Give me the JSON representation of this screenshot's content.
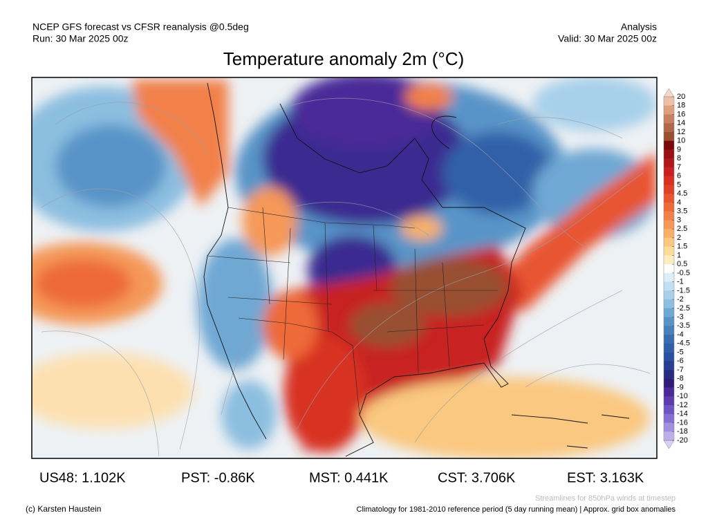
{
  "header": {
    "left_line1": "NCEP GFS forecast vs CFSR reanalysis @0.5deg",
    "left_line2": "Run: 30 Mar 2025 00z",
    "right_line1": "Analysis",
    "right_line2": "Valid: 30 Mar 2025 00z"
  },
  "title": "Temperature anomaly 2m (°C)",
  "stats": [
    "US48: 1.102K",
    "PST: -0.86K",
    "MST: 0.441K",
    "CST: 3.706K",
    "EST: 3.163K"
  ],
  "colorbar": {
    "ticks": [
      20,
      18,
      16,
      14,
      12,
      10,
      9,
      8,
      7,
      6,
      5,
      4.5,
      4,
      3.5,
      3,
      2.5,
      2,
      1.5,
      1,
      0.5,
      -0.5,
      -1,
      -1.5,
      -2,
      -2.5,
      -3,
      -3.5,
      -4,
      -4.5,
      -5,
      -6,
      -7,
      -8,
      -9,
      -10,
      -12,
      -14,
      -16,
      -18,
      -20
    ],
    "colors": [
      "#f7d8c8",
      "#efc0a8",
      "#e0a080",
      "#c88060",
      "#b06848",
      "#985030",
      "#7a0a0a",
      "#9a0f10",
      "#b01818",
      "#c82020",
      "#d83020",
      "#e04028",
      "#e85530",
      "#ee6a38",
      "#f28048",
      "#f59858",
      "#f8b068",
      "#fac880",
      "#fcdc98",
      "#fdedc0",
      "#ffffff",
      "#dceef8",
      "#c0e0f2",
      "#a8d0ea",
      "#8cbee0",
      "#70a8d4",
      "#5894c8",
      "#4880bc",
      "#3a6cb0",
      "#3060a8",
      "#2a50a0",
      "#283e90",
      "#282c80",
      "#301c78",
      "#4a2a98",
      "#5c3cb0",
      "#7054c4",
      "#8670d4",
      "#a090e0",
      "#bcb0ec",
      "#d8d0f6"
    ]
  },
  "footer": {
    "streamlines_note": "Streamlines for 850hPa winds at timestep",
    "copyright": "(c) Karsten Haustein",
    "climatology_note": "Climatology for 1981-2010 reference period (5 day running mean) | Approx. grid box anomalies"
  }
}
